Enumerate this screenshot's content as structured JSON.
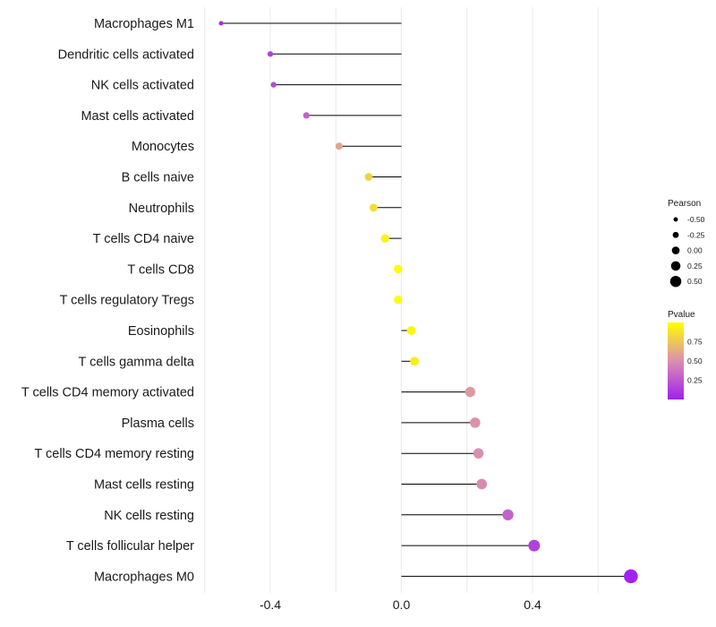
{
  "chart_data": {
    "type": "lollipop",
    "xlabel": "",
    "ylabel": "",
    "xlim": [
      -0.6,
      0.72
    ],
    "xticks": [
      -0.4,
      0.0,
      0.4
    ],
    "xtick_labels": [
      "-0.4",
      "0.0",
      "0.4"
    ],
    "minor_gridlines": [
      -0.6,
      -0.2,
      0.2,
      0.6
    ],
    "categories": [
      "Macrophages M1",
      "Dendritic cells activated",
      "NK cells activated",
      "Mast cells activated",
      "Monocytes",
      "B cells naive",
      "Neutrophils",
      "T cells CD4 naive",
      "T cells CD8",
      "T cells regulatory  Tregs ",
      "Eosinophils",
      "T cells gamma delta",
      "T cells CD4 memory activated",
      "Plasma cells",
      "T cells CD4 memory resting",
      "Mast cells resting",
      "NK cells resting",
      "T cells follicular helper",
      "Macrophages M0"
    ],
    "pearson": [
      -0.55,
      -0.4,
      -0.39,
      -0.29,
      -0.19,
      -0.1,
      -0.085,
      -0.05,
      -0.01,
      -0.01,
      0.03,
      0.04,
      0.21,
      0.225,
      0.235,
      0.245,
      0.325,
      0.405,
      0.7
    ],
    "pvalue": [
      0.05,
      0.15,
      0.18,
      0.3,
      0.6,
      0.8,
      0.85,
      0.95,
      0.99,
      0.99,
      0.96,
      0.92,
      0.55,
      0.52,
      0.5,
      0.48,
      0.3,
      0.15,
      0.01
    ],
    "legend_size": {
      "title": "Pearson",
      "labels": [
        "-0.50",
        "-0.25",
        "0.00",
        "0.25",
        "0.50"
      ]
    },
    "legend_color": {
      "title": "Pvalue",
      "labels": [
        "0.75",
        "0.50",
        "0.25"
      ],
      "label_values": [
        0.75,
        0.5,
        0.25
      ],
      "range": [
        0.0,
        1.0
      ],
      "low_color": "#a020f0",
      "mid_color": "#d98fb0",
      "high_color": "#ffff00"
    },
    "colors": {
      "stem": "#000000",
      "grid": "#ebebeb",
      "legend_dot": "#000000"
    }
  }
}
